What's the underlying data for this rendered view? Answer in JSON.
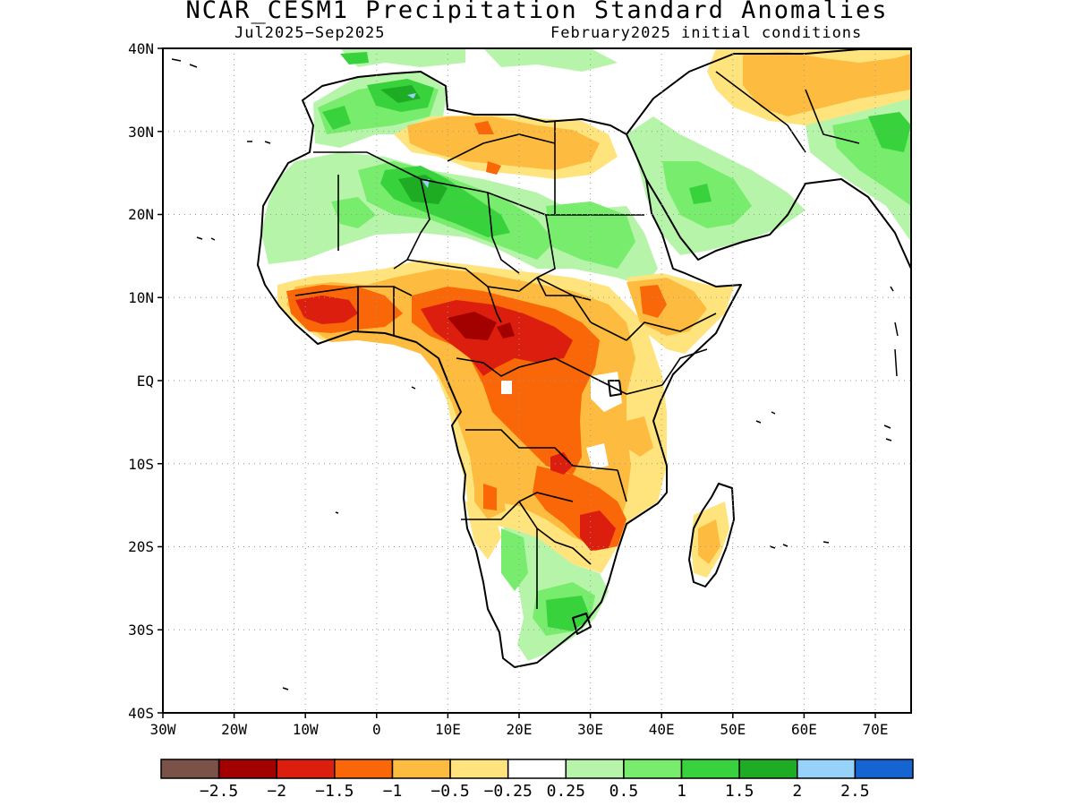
{
  "title": "NCAR_CESM1 Precipitation Standard Anomalies",
  "subtitle_left": "Jul2025−Sep2025",
  "subtitle_right": "February2025 initial conditions",
  "map": {
    "lat_labels": [
      "40N",
      "30N",
      "20N",
      "10N",
      "EQ",
      "10S",
      "20S",
      "30S",
      "40S"
    ],
    "lon_labels": [
      "30W",
      "20W",
      "10W",
      "0",
      "10E",
      "20E",
      "30E",
      "40E",
      "50E",
      "60E",
      "70E"
    ],
    "lon_range": [
      -30,
      75
    ],
    "lat_range": [
      -40,
      40
    ]
  },
  "colorbar": {
    "colors": [
      "#7b5247",
      "#a30000",
      "#dc1e0e",
      "#f96709",
      "#fdbb3f",
      "#ffe37c",
      "#ffffff",
      "#b6f5a9",
      "#78ec6c",
      "#37d23c",
      "#1fac25",
      "#96d2fa",
      "#1464d2"
    ],
    "labels": [
      "−2.5",
      "−2",
      "−1.5",
      "−1",
      "−0.5",
      "−0.25",
      "0.25",
      "0.5",
      "1",
      "1.5",
      "2",
      "2.5"
    ]
  },
  "legend_colors": {
    "dry_strong": "#a30000",
    "dry": "#dc1e0e",
    "dry_mod": "#f96709",
    "dry_weak": "#fdbb3f",
    "dry_slight": "#ffe37c",
    "wet_slight": "#b6f5a9",
    "wet": "#78ec6c",
    "wet_mod": "#37d23c",
    "wet_strong": "#1fac25",
    "wet_extreme": "#96d2fa"
  }
}
